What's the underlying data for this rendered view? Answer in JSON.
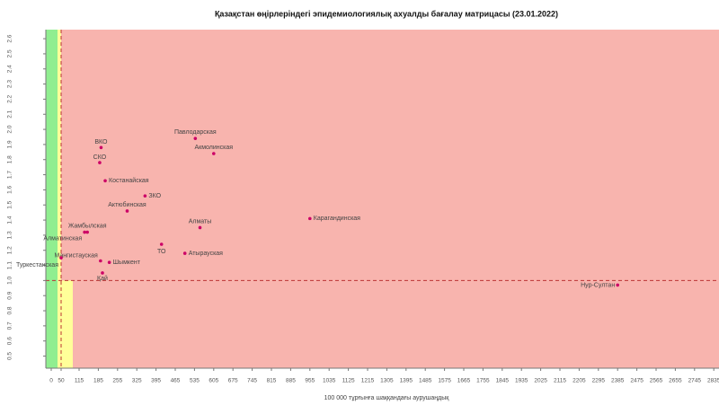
{
  "chart_data": {
    "type": "scatter",
    "title": "Қазақстан өңірлеріндегі эпидемиологиялық ахуалды бағалау матрицасы  (23.01.2022)",
    "x_label": "100 000 тұрғынға шаққандағы аурушаңдық",
    "categories": [
      "Павлодарская",
      "Акмолинская",
      "ВКО",
      "СКО",
      "Костанайская",
      "ЗКО",
      "Актюбинская",
      "Алматы",
      "Карагандинская",
      "Жамбылская",
      "Алматинская",
      "ТО",
      "Атырауская",
      "Мангистауская",
      "Шымкент",
      "Туркестанская",
      "Нур-Султан",
      "Қай"
    ],
    "x": [
      538,
      605,
      195,
      190,
      210,
      355,
      290,
      555,
      955,
      145,
      135,
      415,
      500,
      193,
      225,
      50,
      2385,
      200
    ],
    "values": [
      1.94,
      1.84,
      1.88,
      1.78,
      1.66,
      1.56,
      1.46,
      1.35,
      1.41,
      1.32,
      1.32,
      1.24,
      1.18,
      1.13,
      1.12,
      1.15,
      0.97,
      1.05
    ],
    "color": "#cc0066",
    "xticks": [
      0,
      50,
      115,
      185,
      255,
      325,
      395,
      465,
      535,
      605,
      675,
      745,
      815,
      885,
      955,
      1035,
      1125,
      1215,
      1305,
      1395,
      1485,
      1575,
      1665,
      1755,
      1845,
      1935,
      2025,
      2115,
      2205,
      2295,
      2385,
      2475,
      2565,
      2655,
      2745,
      2835
    ],
    "ylim": [
      0.42,
      2.66
    ],
    "yticks": [
      0.5,
      0.6,
      0.7,
      0.8,
      0.9,
      {
        "value": 1,
        "label": "1.0"
      },
      1.1,
      1.2,
      1.3,
      1.4,
      1.5,
      1.6,
      1.7,
      1.8,
      1.9,
      {
        "value": 2,
        "label": "2.0"
      },
      2.1,
      2.2,
      2.3,
      2.4,
      2.5,
      2.6
    ]
  }
}
